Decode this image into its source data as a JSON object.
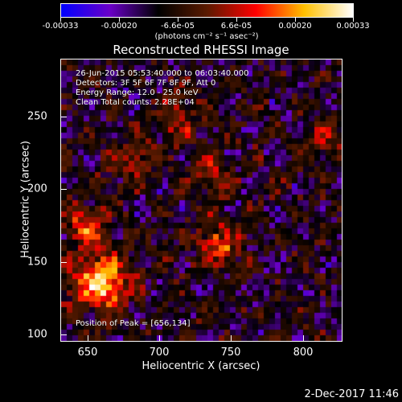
{
  "colorbar": {
    "labels": [
      "-0.00033",
      "-0.00020",
      "-6.6e-05",
      "6.6e-05",
      "0.00020",
      "0.00033"
    ],
    "units": "(photons cm⁻² s⁻¹ asec⁻²)",
    "colors": [
      "#0000ff",
      "#6a00c8",
      "#000000",
      "#5a1a00",
      "#ff0000",
      "#ffc000",
      "#ffffff"
    ]
  },
  "title": "Reconstructed RHESSI Image",
  "info": {
    "time_range": "26-Jun-2015 05:53:40.000 to 06:03:40.000",
    "detectors": "Detectors: 3F 5F 6F 7F 8F 9F, Att 0",
    "energy": "Energy Range: 12.0 - 25.0 keV",
    "clean": "Clean    Total counts: 2.28E+04",
    "peak": "Position of Peak = [656,134]"
  },
  "axes": {
    "xlabel": "Heliocentric X (arcsec)",
    "ylabel": "Heliocentric Y (arcsec)",
    "xticks": [
      "650",
      "700",
      "750",
      "800"
    ],
    "yticks": [
      "250",
      "200",
      "150",
      "100"
    ]
  },
  "datestamp": "2-Dec-2017 11:46"
}
